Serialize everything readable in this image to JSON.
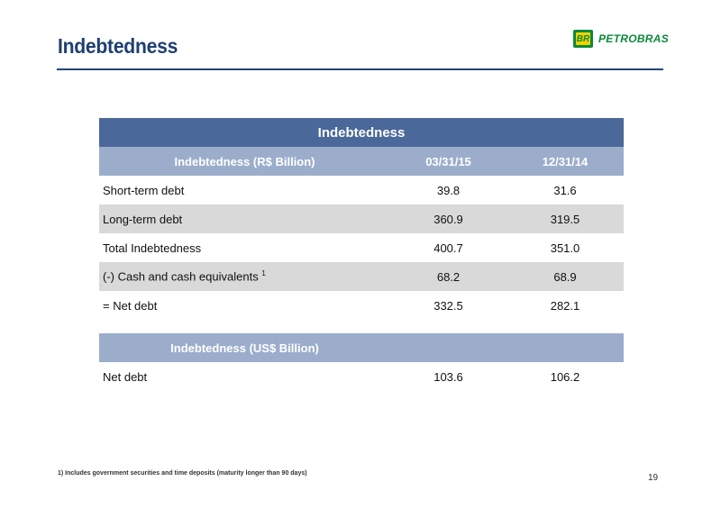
{
  "header": {
    "title": "Indebtedness",
    "logo_mark": "BR",
    "logo_text": "PETROBRAS"
  },
  "table": {
    "title": "Indebtedness",
    "brl_header": {
      "label": "Indebtedness (R$ Billion)",
      "col1": "03/31/15",
      "col2": "12/31/14"
    },
    "brl_rows": [
      {
        "label": "Short-term debt",
        "v1": "39.8",
        "v2": "31.6"
      },
      {
        "label": "Long-term debt",
        "v1": "360.9",
        "v2": "319.5"
      },
      {
        "label": "Total Indebtedness",
        "v1": "400.7",
        "v2": "351.0"
      },
      {
        "label": "(-) Cash and cash equivalents",
        "sup": "1",
        "v1": "68.2",
        "v2": "68.9"
      },
      {
        "label": "= Net debt",
        "v1": "332.5",
        "v2": "282.1"
      }
    ],
    "usd_header": {
      "label": "Indebtedness (US$ Billion)"
    },
    "usd_rows": [
      {
        "label": "Net debt",
        "v1": "103.6",
        "v2": "106.2"
      }
    ]
  },
  "footer": {
    "footnote": "1) Includes government securities and time deposits (maturity longer than 90 days)",
    "page_number": "19"
  }
}
